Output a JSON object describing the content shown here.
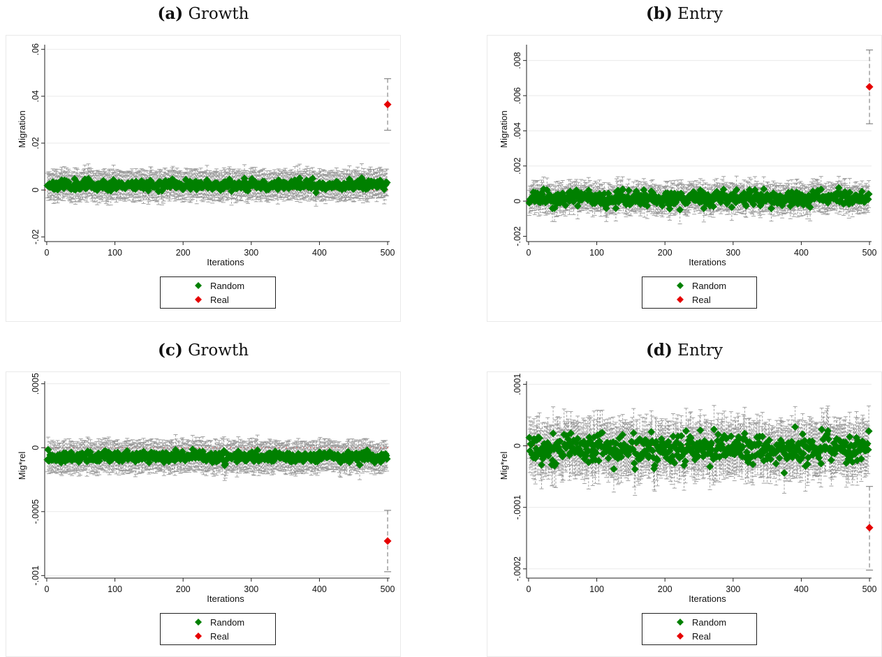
{
  "chart_data": [
    {
      "type": "scatter",
      "letter": "(a)",
      "title": "Growth",
      "xlabel": "Iterations",
      "ylabel": "Migration",
      "xlim": [
        -3,
        503
      ],
      "ylim": [
        -0.022,
        0.062
      ],
      "xticks": [
        0,
        100,
        200,
        300,
        400,
        500
      ],
      "xtick_labels": [
        "0",
        "100",
        "200",
        "300",
        "400",
        "500"
      ],
      "yticks": [
        -0.02,
        0,
        0.02,
        0.04,
        0.06
      ],
      "ytick_labels": [
        "-.02",
        "0",
        ".02",
        ".04",
        ".06"
      ],
      "gridlines": [
        0.02,
        0.04,
        0.06
      ],
      "reference_line": 0,
      "legend": [
        "Random",
        "Real"
      ],
      "legend_position": "bottom",
      "series": [
        {
          "name": "Random",
          "color": "#008000",
          "x_range": [
            1,
            499
          ],
          "n": 499,
          "mean": 0.0022,
          "spread": 0.0011,
          "ci_halfwidth": 0.0055,
          "cap_color": "#999999",
          "seed": 11
        },
        {
          "name": "Real",
          "color": "#e60000",
          "points": [
            {
              "x": 500,
              "y": 0.0365,
              "lo": 0.0255,
              "hi": 0.0475
            }
          ],
          "cap_color": "#888888"
        }
      ]
    },
    {
      "type": "scatter",
      "letter": "(b)",
      "title": "Entry",
      "xlabel": "Iterations",
      "ylabel": "Migration",
      "xlim": [
        -3,
        503
      ],
      "ylim": [
        -0.0023,
        0.0089
      ],
      "xticks": [
        0,
        100,
        200,
        300,
        400,
        500
      ],
      "xtick_labels": [
        "0",
        "100",
        "200",
        "300",
        "400",
        "500"
      ],
      "yticks": [
        -0.002,
        0,
        0.002,
        0.004,
        0.006,
        0.008
      ],
      "ytick_labels": [
        "-.002",
        "0",
        ".002",
        ".004",
        ".006",
        ".008"
      ],
      "gridlines": [
        0.002,
        0.004,
        0.006,
        0.008
      ],
      "reference_line": 0,
      "legend": [
        "Random",
        "Real"
      ],
      "legend_position": "bottom",
      "series": [
        {
          "name": "Random",
          "color": "#008000",
          "x_range": [
            1,
            499
          ],
          "n": 499,
          "mean": 0.00015,
          "spread": 0.00022,
          "ci_halfwidth": 0.0007,
          "cap_color": "#999999",
          "seed": 23
        },
        {
          "name": "Real",
          "color": "#e60000",
          "points": [
            {
              "x": 500,
              "y": 0.0065,
              "lo": 0.0044,
              "hi": 0.0086
            }
          ],
          "cap_color": "#888888"
        }
      ]
    },
    {
      "type": "scatter",
      "letter": "(c)",
      "title": "Growth",
      "xlabel": "Iterations",
      "ylabel": "Mig*rel",
      "xlim": [
        -3,
        503
      ],
      "ylim": [
        -0.00102,
        0.00052
      ],
      "xticks": [
        0,
        100,
        200,
        300,
        400,
        500
      ],
      "xtick_labels": [
        "0",
        "100",
        "200",
        "300",
        "400",
        "500"
      ],
      "yticks": [
        -0.001,
        -0.0005,
        0,
        0.0005
      ],
      "ytick_labels": [
        "-.001",
        "-.0005",
        "0",
        ".0005"
      ],
      "gridlines": [
        -0.001,
        -0.0005,
        0.0005
      ],
      "reference_line": 0,
      "legend": [
        "Random",
        "Real"
      ],
      "legend_position": "bottom",
      "series": [
        {
          "name": "Random",
          "color": "#008000",
          "x_range": [
            1,
            499
          ],
          "n": 499,
          "mean": -7e-05,
          "spread": 2.2e-05,
          "ci_halfwidth": 0.000105,
          "cap_color": "#999999",
          "seed": 37
        },
        {
          "name": "Real",
          "color": "#e60000",
          "points": [
            {
              "x": 500,
              "y": -0.00073,
              "lo": -0.00097,
              "hi": -0.00049
            }
          ],
          "cap_color": "#888888"
        }
      ]
    },
    {
      "type": "scatter",
      "letter": "(d)",
      "title": "Entry",
      "xlabel": "Iterations",
      "ylabel": "Mig*rel",
      "xlim": [
        -3,
        503
      ],
      "ylim": [
        -0.000215,
        0.000105
      ],
      "xticks": [
        0,
        100,
        200,
        300,
        400,
        500
      ],
      "xtick_labels": [
        "0",
        "100",
        "200",
        "300",
        "400",
        "500"
      ],
      "yticks": [
        -0.0002,
        -0.0001,
        0,
        0.0001
      ],
      "ytick_labels": [
        "-.0002",
        "-.0001",
        "0",
        ".0001"
      ],
      "gridlines": [
        -0.0002,
        -0.0001,
        0.0001
      ],
      "reference_line": 0,
      "legend": [
        "Random",
        "Real"
      ],
      "legend_position": "bottom",
      "series": [
        {
          "name": "Random",
          "color": "#008000",
          "x_range": [
            1,
            499
          ],
          "n": 499,
          "mean": -5e-06,
          "spread": 1.3e-05,
          "ci_halfwidth": 3.8e-05,
          "cap_color": "#999999",
          "seed": 53
        },
        {
          "name": "Real",
          "color": "#e60000",
          "points": [
            {
              "x": 500,
              "y": -0.000133,
              "lo": -0.000202,
              "hi": -6.6e-05
            }
          ],
          "cap_color": "#888888"
        }
      ]
    }
  ]
}
